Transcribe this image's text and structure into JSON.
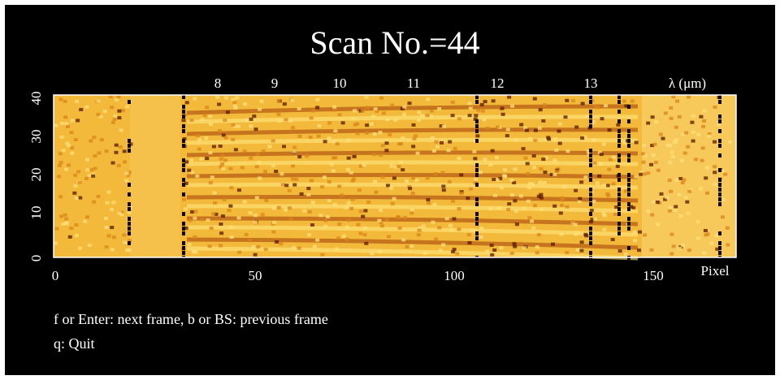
{
  "window": {
    "title": "Scan No.=44"
  },
  "plot": {
    "wavelength_axis_label": "λ (μm)",
    "wavelength_ticks": [
      "8",
      "9",
      "10",
      "11",
      "12",
      "13"
    ],
    "pixel_axis_label": "Pixel",
    "pixel_ticks": [
      "0",
      "50",
      "100",
      "150"
    ],
    "row_ticks": [
      "0",
      "10",
      "20",
      "30",
      "40"
    ],
    "colors": {
      "background": "#000000",
      "base_yellow": "#f4bf36",
      "bright_yellow": "#ffe46a",
      "dark_band": "#1a0a00"
    }
  },
  "help": {
    "line1": "f or Enter: next frame, b or BS: previous frame",
    "line2": "q: Quit"
  }
}
